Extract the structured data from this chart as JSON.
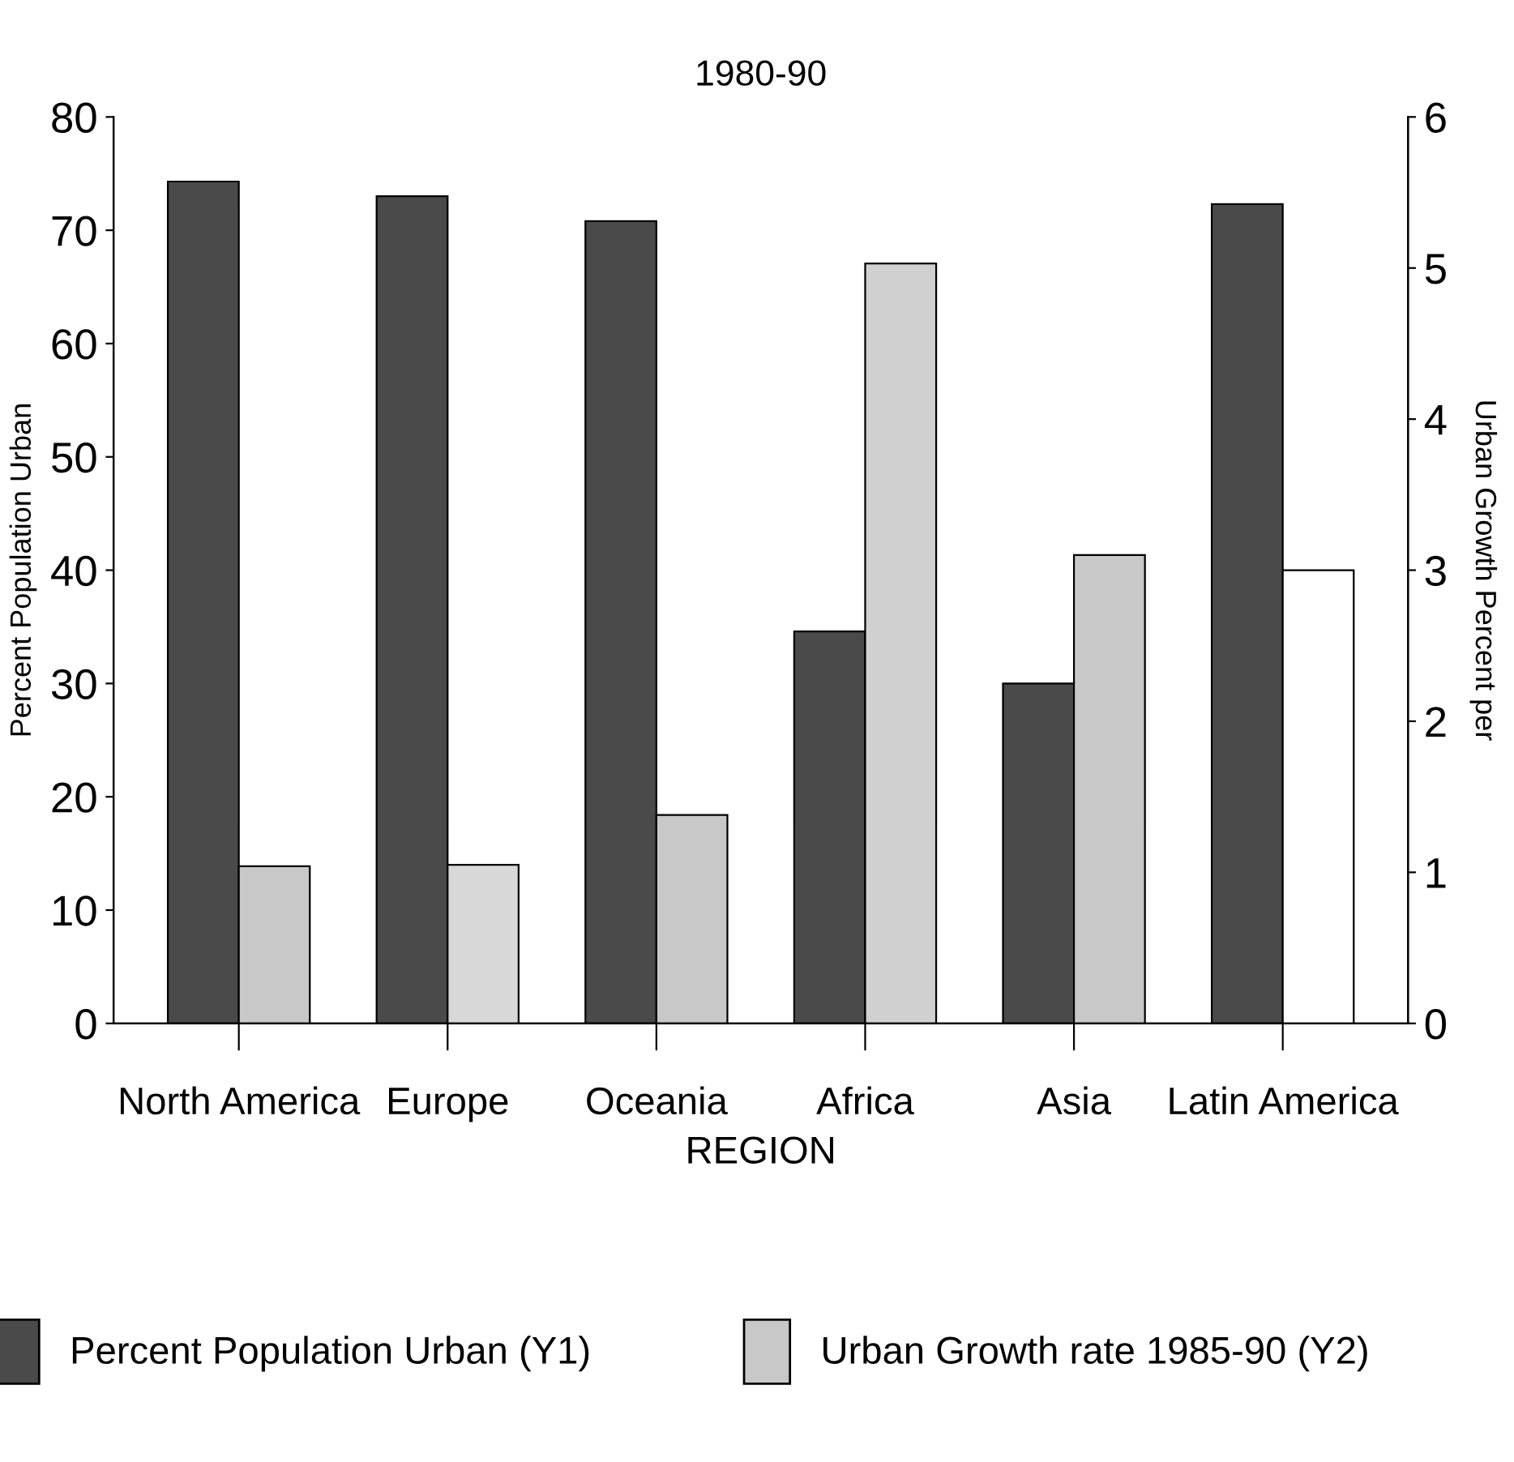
{
  "chart_data": {
    "type": "bar",
    "title": "1980-90",
    "xlabel": "REGION",
    "ylabel": "Percent Population Urban",
    "y2label": "Urban Growth Percent per",
    "categories": [
      "North America",
      "Europe",
      "Oceania",
      "Africa",
      "Asia",
      "Latin America"
    ],
    "series": [
      {
        "name": "Percent Population Urban (Y1)",
        "color": "#4a4a4a",
        "values": [
          74.3,
          73.0,
          70.8,
          34.6,
          30.0,
          72.3
        ]
      },
      {
        "name": "Urban Growth rate 1985-90 (Y2)",
        "color": "#c8c8c8",
        "colors": [
          "#c8c8c8",
          "#d8d8d8",
          "#c8c8c8",
          "#d0d0d0",
          "#c8c8c8",
          "#ffffff"
        ],
        "axis": "y2",
        "values": [
          1.04,
          1.05,
          1.38,
          5.03,
          3.1,
          3.0
        ]
      }
    ],
    "ylim": [
      0,
      80
    ],
    "yticks": [
      0,
      10,
      20,
      30,
      40,
      50,
      60,
      70,
      80
    ],
    "y2lim": [
      0,
      6
    ],
    "y2ticks": [
      0,
      1,
      2,
      3,
      4,
      5,
      6
    ],
    "grid": false,
    "legend": "bottom"
  }
}
